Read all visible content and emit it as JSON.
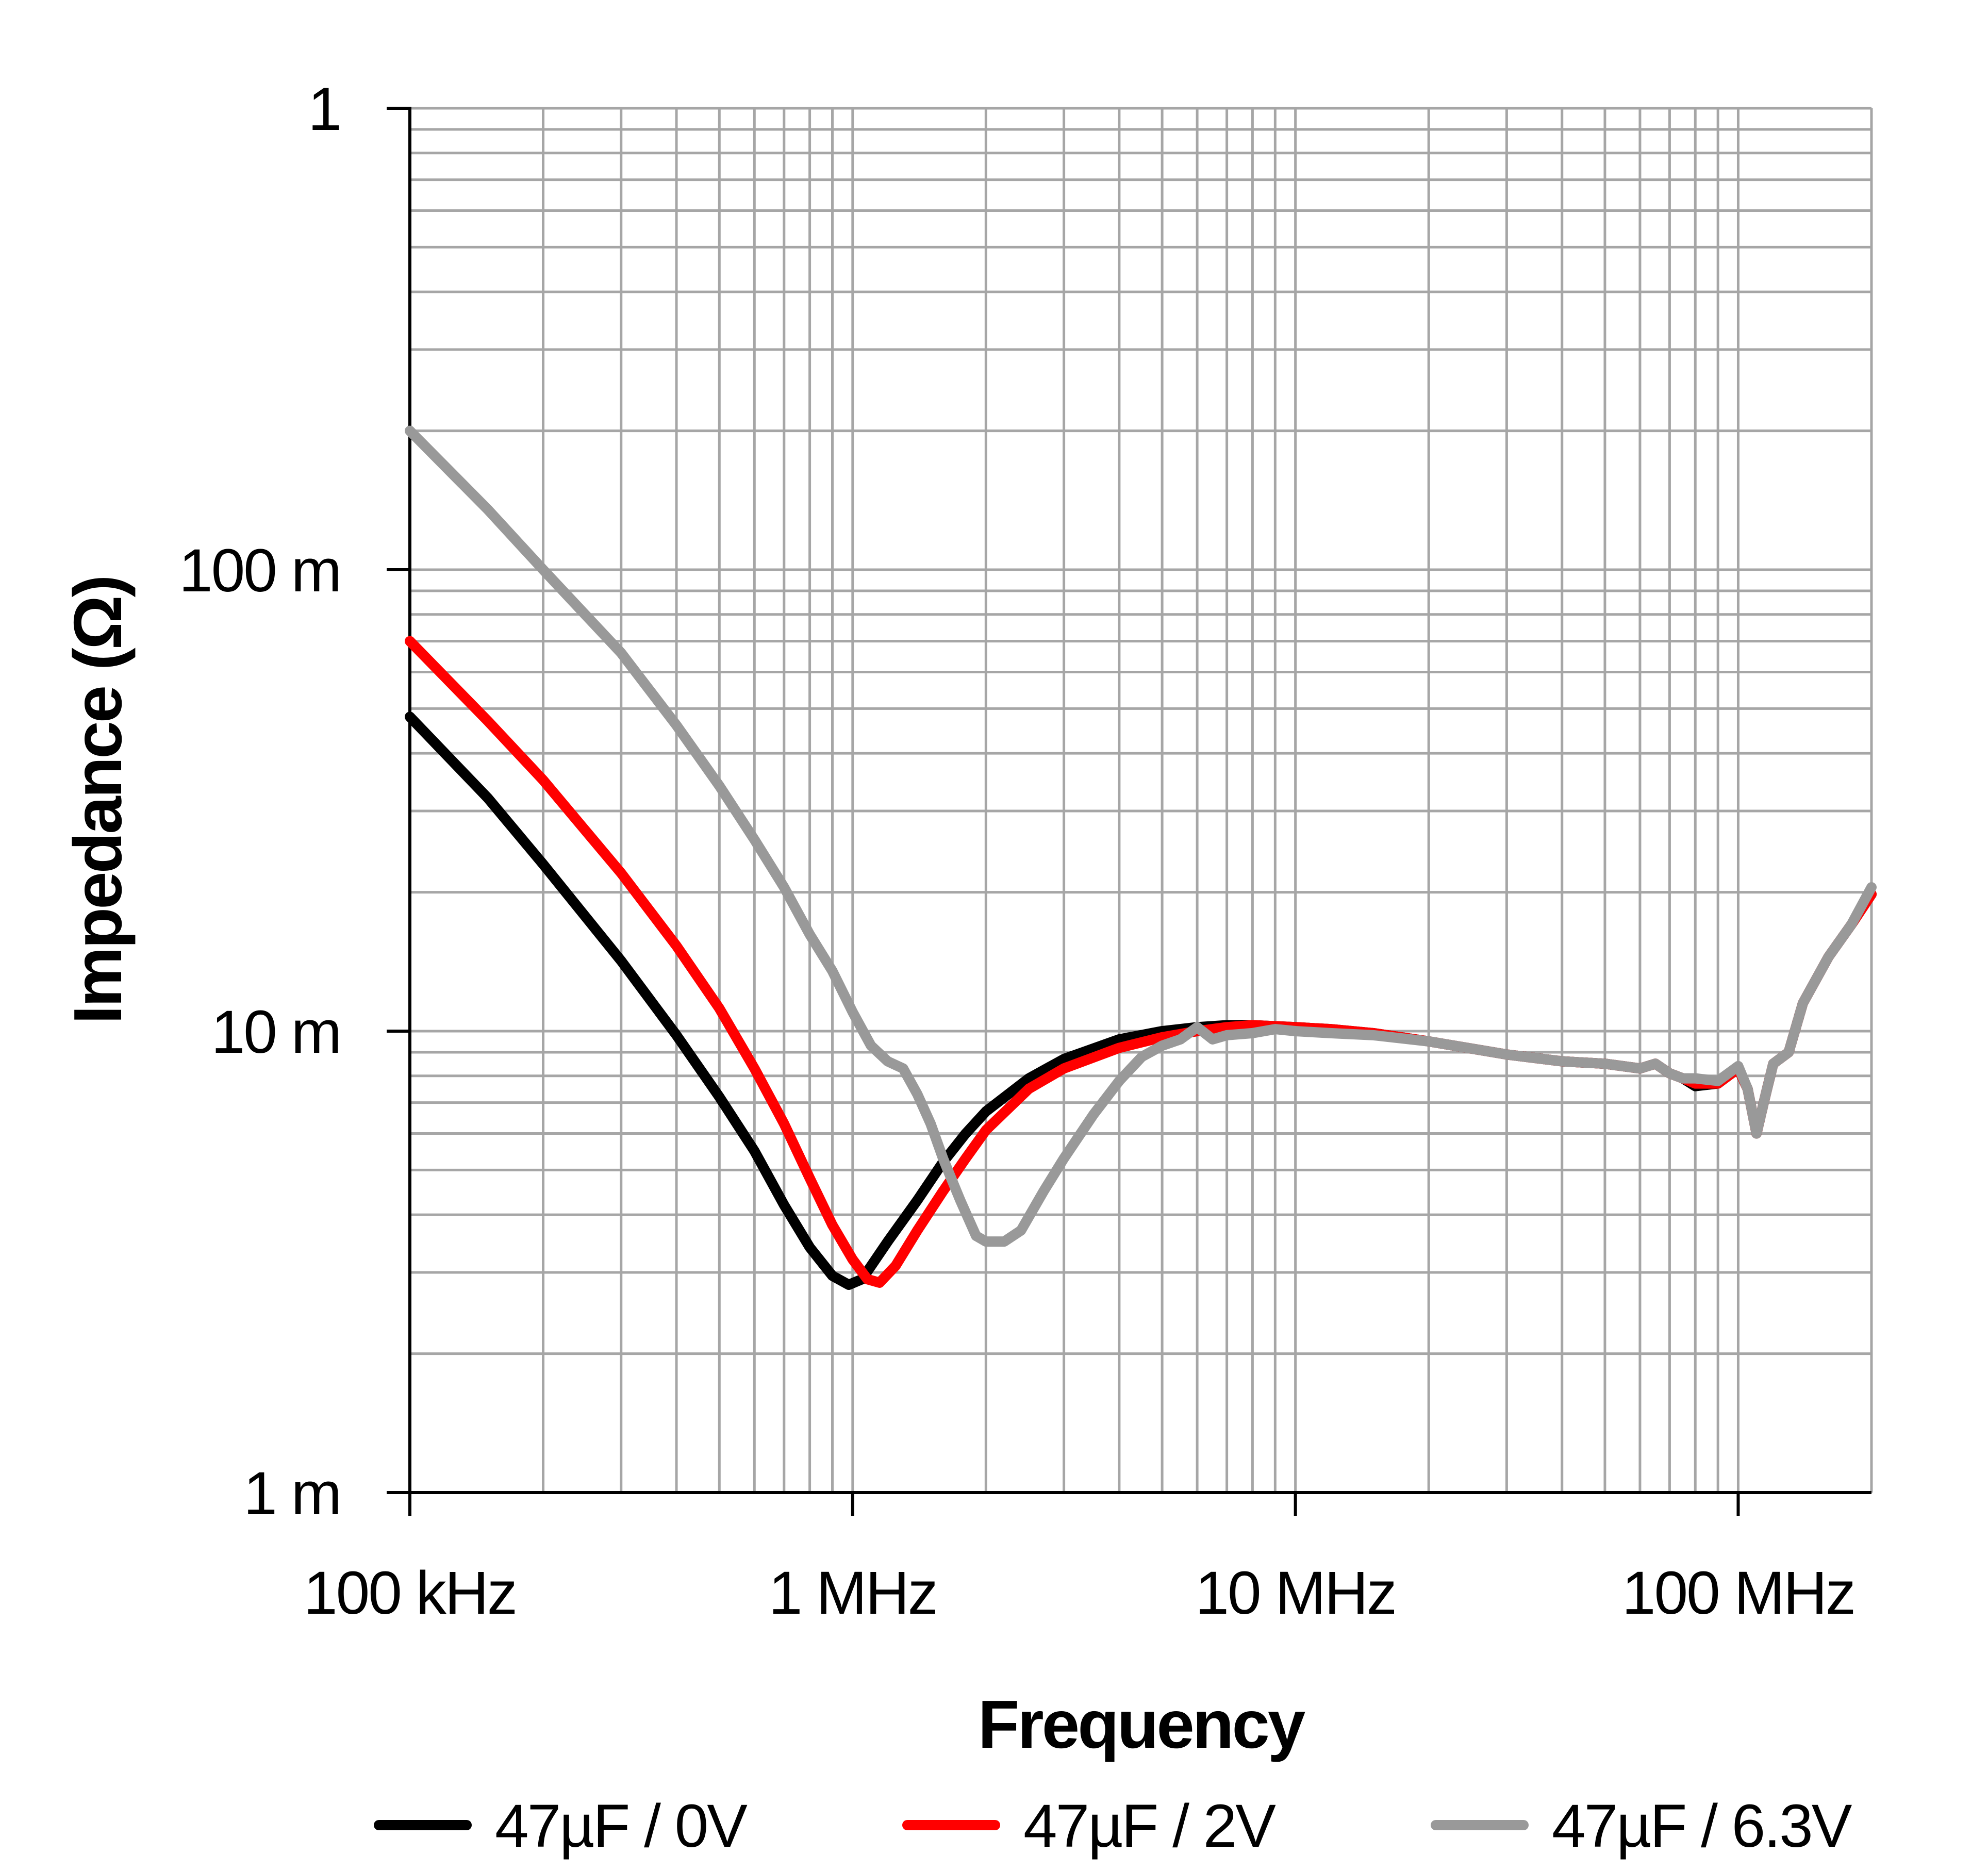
{
  "chart_data": {
    "type": "line",
    "title": "",
    "xlabel": "Frequency",
    "ylabel": "Impedance (Ω)",
    "x_scale": "log",
    "y_scale": "log",
    "xlim": [
      100000,
      200000000
    ],
    "ylim": [
      0.001,
      1
    ],
    "grid": true,
    "legend_position": "bottom",
    "x_ticks": [
      {
        "value": 100000,
        "label": "100 kHz"
      },
      {
        "value": 1000000,
        "label": "1 MHz"
      },
      {
        "value": 10000000,
        "label": "10 MHz"
      },
      {
        "value": 100000000,
        "label": "100 MHz"
      }
    ],
    "y_ticks": [
      {
        "value": 1,
        "label": "1"
      },
      {
        "value": 0.1,
        "label": "100 m"
      },
      {
        "value": 0.01,
        "label": "10 m"
      },
      {
        "value": 0.001,
        "label": "1 m"
      }
    ],
    "series": [
      {
        "name": "47µF / 0V",
        "color": "#000000",
        "points": [
          [
            100000,
            0.048
          ],
          [
            150000,
            0.032
          ],
          [
            200000,
            0.023
          ],
          [
            300000,
            0.0142
          ],
          [
            400000,
            0.0098
          ],
          [
            500000,
            0.0072
          ],
          [
            600000,
            0.0055
          ],
          [
            700000,
            0.0042
          ],
          [
            800000,
            0.0034
          ],
          [
            900000,
            0.00295
          ],
          [
            980000,
            0.00282
          ],
          [
            1050000,
            0.0029
          ],
          [
            1200000,
            0.0035
          ],
          [
            1400000,
            0.0043
          ],
          [
            1600000,
            0.0052
          ],
          [
            1800000,
            0.006
          ],
          [
            2000000,
            0.0067
          ],
          [
            2500000,
            0.0079
          ],
          [
            3000000,
            0.0087
          ],
          [
            4000000,
            0.0096
          ],
          [
            5000000,
            0.01
          ],
          [
            6000000,
            0.0102
          ],
          [
            7000000,
            0.0103
          ],
          [
            8000000,
            0.0103
          ],
          [
            10000000,
            0.0102
          ],
          [
            12000000,
            0.0101
          ],
          [
            15000000,
            0.0099
          ],
          [
            20000000,
            0.0095
          ],
          [
            30000000,
            0.0089
          ],
          [
            40000000,
            0.0086
          ],
          [
            50000000,
            0.0085
          ],
          [
            60000000,
            0.0083
          ],
          [
            65000000,
            0.0085
          ],
          [
            70000000,
            0.0081
          ],
          [
            75000000,
            0.0079
          ],
          [
            80000000,
            0.0076
          ],
          [
            90000000,
            0.0077
          ],
          [
            100000000,
            0.0083
          ],
          [
            105000000,
            0.0075
          ],
          [
            110000000,
            0.006
          ],
          [
            115000000,
            0.0072
          ],
          [
            120000000,
            0.0085
          ],
          [
            130000000,
            0.009
          ],
          [
            140000000,
            0.0115
          ],
          [
            160000000,
            0.0145
          ],
          [
            180000000,
            0.017
          ],
          [
            200000000,
            0.0198
          ]
        ]
      },
      {
        "name": "47µF / 2V",
        "color": "#ff0000",
        "points": [
          [
            100000,
            0.07
          ],
          [
            150000,
            0.047
          ],
          [
            200000,
            0.035
          ],
          [
            300000,
            0.022
          ],
          [
            400000,
            0.0153
          ],
          [
            500000,
            0.0112
          ],
          [
            600000,
            0.0083
          ],
          [
            700000,
            0.0063
          ],
          [
            800000,
            0.0048
          ],
          [
            900000,
            0.0038
          ],
          [
            1000000,
            0.0032
          ],
          [
            1080000,
            0.0029
          ],
          [
            1150000,
            0.00285
          ],
          [
            1250000,
            0.0031
          ],
          [
            1400000,
            0.0037
          ],
          [
            1600000,
            0.0045
          ],
          [
            1800000,
            0.0053
          ],
          [
            2000000,
            0.0061
          ],
          [
            2500000,
            0.0075
          ],
          [
            3000000,
            0.0083
          ],
          [
            4000000,
            0.0092
          ],
          [
            5000000,
            0.0097
          ],
          [
            6000000,
            0.01
          ],
          [
            7000000,
            0.0102
          ],
          [
            8000000,
            0.0103
          ],
          [
            10000000,
            0.0102
          ],
          [
            12000000,
            0.0101
          ],
          [
            15000000,
            0.0099
          ],
          [
            20000000,
            0.0095
          ],
          [
            30000000,
            0.0089
          ],
          [
            40000000,
            0.0086
          ],
          [
            50000000,
            0.0085
          ],
          [
            60000000,
            0.0083
          ],
          [
            65000000,
            0.0085
          ],
          [
            70000000,
            0.0081
          ],
          [
            75000000,
            0.0079
          ],
          [
            80000000,
            0.0077
          ],
          [
            90000000,
            0.0077
          ],
          [
            100000000,
            0.0083
          ],
          [
            105000000,
            0.0075
          ],
          [
            110000000,
            0.006
          ],
          [
            115000000,
            0.0072
          ],
          [
            120000000,
            0.0085
          ],
          [
            130000000,
            0.009
          ],
          [
            140000000,
            0.0115
          ],
          [
            160000000,
            0.0145
          ],
          [
            180000000,
            0.017
          ],
          [
            200000000,
            0.0198
          ]
        ]
      },
      {
        "name": "47µF / 6.3V",
        "color": "#999999",
        "points": [
          [
            100000,
            0.2
          ],
          [
            150000,
            0.135
          ],
          [
            200000,
            0.1
          ],
          [
            300000,
            0.066
          ],
          [
            400000,
            0.046
          ],
          [
            500000,
            0.034
          ],
          [
            600000,
            0.026
          ],
          [
            700000,
            0.0205
          ],
          [
            800000,
            0.0162
          ],
          [
            900000,
            0.0135
          ],
          [
            1000000,
            0.011
          ],
          [
            1100000,
            0.0093
          ],
          [
            1200000,
            0.0086
          ],
          [
            1300000,
            0.0083
          ],
          [
            1400000,
            0.0073
          ],
          [
            1500000,
            0.0063
          ],
          [
            1600000,
            0.0053
          ],
          [
            1750000,
            0.0043
          ],
          [
            1900000,
            0.0036
          ],
          [
            2000000,
            0.0035
          ],
          [
            2200000,
            0.0035
          ],
          [
            2400000,
            0.0037
          ],
          [
            2700000,
            0.0045
          ],
          [
            3000000,
            0.0053
          ],
          [
            3500000,
            0.0066
          ],
          [
            4000000,
            0.0078
          ],
          [
            4500000,
            0.0088
          ],
          [
            5000000,
            0.0093
          ],
          [
            5500000,
            0.0096
          ],
          [
            6000000,
            0.0102
          ],
          [
            6500000,
            0.0096
          ],
          [
            7000000,
            0.0098
          ],
          [
            8000000,
            0.0099
          ],
          [
            9000000,
            0.0101
          ],
          [
            10000000,
            0.01
          ],
          [
            12000000,
            0.0099
          ],
          [
            15000000,
            0.0098
          ],
          [
            20000000,
            0.0095
          ],
          [
            30000000,
            0.0089
          ],
          [
            40000000,
            0.0086
          ],
          [
            50000000,
            0.0085
          ],
          [
            60000000,
            0.0083
          ],
          [
            65000000,
            0.0085
          ],
          [
            70000000,
            0.0081
          ],
          [
            75000000,
            0.0079
          ],
          [
            80000000,
            0.0079
          ],
          [
            90000000,
            0.0078
          ],
          [
            100000000,
            0.0084
          ],
          [
            105000000,
            0.0075
          ],
          [
            110000000,
            0.006
          ],
          [
            115000000,
            0.0072
          ],
          [
            120000000,
            0.0085
          ],
          [
            130000000,
            0.009
          ],
          [
            140000000,
            0.0115
          ],
          [
            160000000,
            0.0145
          ],
          [
            180000000,
            0.017
          ],
          [
            200000000,
            0.0205
          ]
        ]
      }
    ]
  }
}
